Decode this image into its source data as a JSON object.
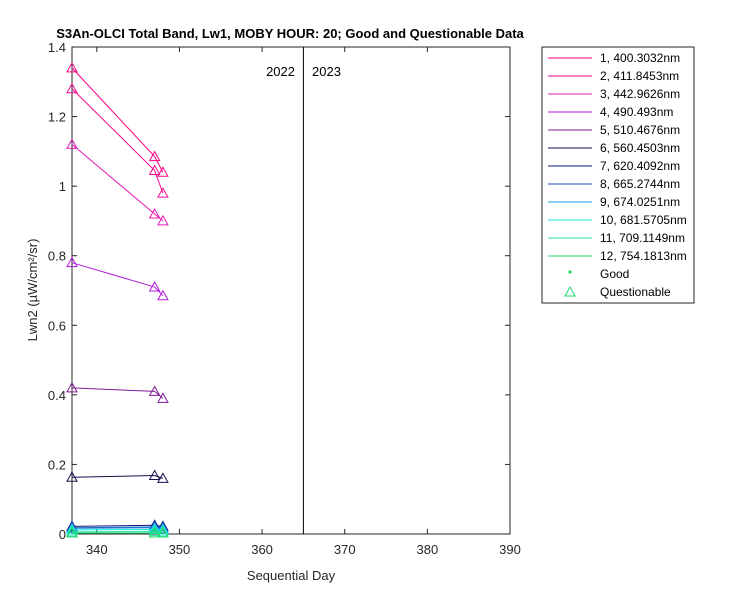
{
  "chart_data": {
    "type": "line",
    "title": "S3An-OLCI Total Band, Lw1, MOBY HOUR: 20;  Good and Questionable Data",
    "xlabel": "Sequential Day",
    "ylabel": "Lwn2 (µW/cm²/sr)",
    "xlim": [
      337,
      390
    ],
    "ylim": [
      0,
      1.4
    ],
    "xticks": [
      340,
      350,
      360,
      370,
      380,
      390
    ],
    "yticks": [
      0,
      0.2,
      0.4,
      0.6,
      0.8,
      1,
      1.2,
      1.4
    ],
    "grid": false,
    "legend_position": "outside-top-right",
    "year_divider": {
      "x": 365,
      "left_label": "2022",
      "right_label": "2023"
    },
    "x": [
      337,
      347,
      348
    ],
    "series": [
      {
        "name": "1, 400.3032nm",
        "color": "#ff0080",
        "values": [
          1.34,
          1.085,
          1.04
        ]
      },
      {
        "name": "2, 411.8453nm",
        "color": "#f20a8c",
        "values": [
          1.28,
          1.045,
          0.98
        ]
      },
      {
        "name": "3, 442.9626nm",
        "color": "#e619b8",
        "values": [
          1.12,
          0.92,
          0.9
        ]
      },
      {
        "name": "4,  490.493nm",
        "color": "#b31ad9",
        "values": [
          0.78,
          0.71,
          0.685
        ]
      },
      {
        "name": "5, 510.4676nm",
        "color": "#801a99",
        "values": [
          0.42,
          0.41,
          0.39
        ]
      },
      {
        "name": "6, 560.4503nm",
        "color": "#1a0d4d",
        "values": [
          0.163,
          0.168,
          0.16
        ]
      },
      {
        "name": "7, 620.4092nm",
        "color": "#0d1a80",
        "values": [
          0.022,
          0.025,
          0.022
        ]
      },
      {
        "name": "8, 665.2744nm",
        "color": "#1a4db3",
        "values": [
          0.018,
          0.02,
          0.017
        ]
      },
      {
        "name": "9, 674.0251nm",
        "color": "#1a99e6",
        "values": [
          0.016,
          0.018,
          0.015
        ]
      },
      {
        "name": "10, 681.5705nm",
        "color": "#1ae6d9",
        "values": [
          0.012,
          0.013,
          0.011
        ]
      },
      {
        "name": "11, 709.1149nm",
        "color": "#1ae6a6",
        "values": [
          0.006,
          0.007,
          0.006
        ]
      },
      {
        "name": "12, 754.1813nm",
        "color": "#1ad966",
        "values": [
          0.003,
          0.003,
          0.003
        ]
      }
    ],
    "marker_legend": [
      {
        "name": "Good",
        "marker": "dot",
        "color": "#1ad966"
      },
      {
        "name": "Questionable",
        "marker": "triangle",
        "color": "#1ad966"
      }
    ]
  }
}
